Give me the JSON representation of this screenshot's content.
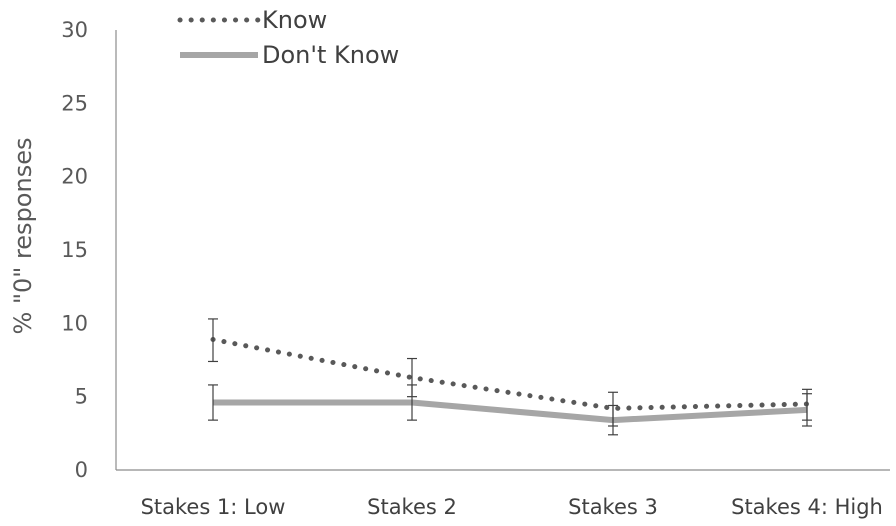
{
  "chart_data": {
    "type": "line",
    "title": "",
    "xlabel": "",
    "ylabel": "% \"0\" responses",
    "ylim": [
      0,
      30
    ],
    "yticks": [
      0,
      5,
      10,
      15,
      20,
      25,
      30
    ],
    "grid": false,
    "legend_position": "top-left",
    "categories": [
      "Stakes 1: Low",
      "Stakes 2",
      "Stakes 3",
      "Stakes 4: High"
    ],
    "series": [
      {
        "name": "Know",
        "style": "dotted",
        "color": "#595959",
        "values": [
          8.9,
          6.3,
          4.2,
          4.5
        ],
        "error_low": [
          7.4,
          5.0,
          3.0,
          3.4
        ],
        "error_high": [
          10.3,
          7.6,
          5.3,
          5.5
        ]
      },
      {
        "name": "Don't Know",
        "style": "solid",
        "color": "#a6a6a6",
        "values": [
          4.6,
          4.6,
          3.4,
          4.1
        ],
        "error_low": [
          3.4,
          3.4,
          2.4,
          3.0
        ],
        "error_high": [
          5.8,
          5.8,
          4.4,
          5.2
        ]
      }
    ]
  }
}
